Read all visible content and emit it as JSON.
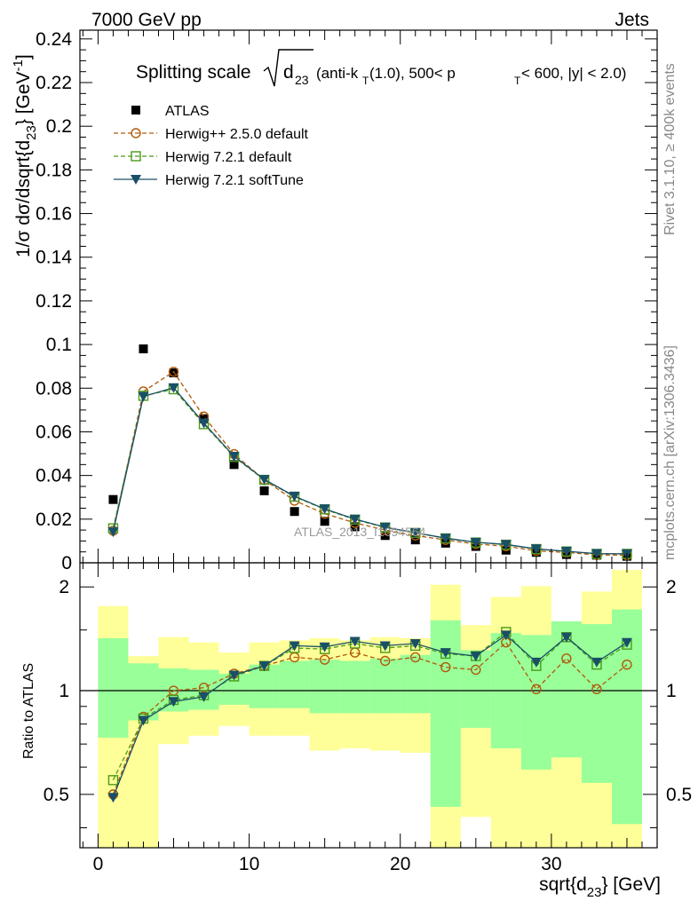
{
  "header": {
    "left": "7000 GeV pp",
    "right": "Jets"
  },
  "side_labels": {
    "rivet": "Rivet 3.1.10, ≥ 400k events",
    "mcplots": "mcplots.cern.ch [arXiv:1306.3436]"
  },
  "watermark": "ATLAS_2013_I1094564",
  "chart_data": [
    {
      "type": "line",
      "panel": "main",
      "title_parts": {
        "prefix": "Splitting scale",
        "radicand_main": "d",
        "radicand_sub": "23",
        "spec_1": "(anti-k",
        "spec_1_sub": "T",
        "spec_2": "(1.0), 500< p",
        "spec_2_sub": "T",
        "spec_3": " < 600, |y| < 2.0)"
      },
      "ylabel": "1/σ dσ/dsqrt{d23} [GeV-1]",
      "ylabel_parts": {
        "main": "1/σ dσ/dsqrt{d",
        "sub": "23",
        "mid": "} [GeV",
        "sup": "-1",
        "end": "]"
      },
      "xlabel": "sqrt{d23} [GeV]",
      "xlabel_parts": {
        "main": "sqrt{d",
        "sub": "23",
        "end": "} [GeV]"
      },
      "xlim": [
        -1.2,
        37
      ],
      "ylim": [
        0,
        0.244
      ],
      "x_ticks": [
        0,
        10,
        20,
        30
      ],
      "x_tick_labels": [
        "0",
        "10",
        "20",
        "30"
      ],
      "y_ticks": [
        0,
        0.02,
        0.04,
        0.06,
        0.08,
        0.1,
        0.12,
        0.14,
        0.16,
        0.18,
        0.2,
        0.22,
        0.24
      ],
      "y_tick_labels": [
        "0",
        "0.02",
        "0.04",
        "0.06",
        "0.08",
        "0.1",
        "0.12",
        "0.14",
        "0.16",
        "0.18",
        "0.2",
        "0.22",
        "0.24"
      ],
      "bin_edges": [
        0,
        2,
        4,
        6,
        8,
        10,
        12,
        14,
        16,
        18,
        20,
        22,
        24,
        26,
        28,
        30,
        32,
        34,
        36
      ],
      "x": [
        1,
        3,
        5,
        7,
        9,
        11,
        13,
        15,
        17,
        19,
        21,
        23,
        25,
        27,
        29,
        31,
        33,
        35
      ],
      "legend_position": "top-left",
      "series": [
        {
          "name": "ATLAS",
          "color": "#000000",
          "marker": "filled-square",
          "line": "none",
          "values": [
            0.029,
            0.098,
            0.087,
            0.066,
            0.045,
            0.033,
            0.0235,
            0.019,
            0.0165,
            0.0125,
            0.0105,
            0.009,
            0.0075,
            0.0058,
            0.0048,
            0.0038,
            0.0035,
            0.003
          ]
        },
        {
          "name": "Herwig++ 2.5.0 default",
          "color": "#b05a0a",
          "marker": "open-circle",
          "line": "dashed",
          "values": [
            0.0147,
            0.0785,
            0.0875,
            0.067,
            0.0498,
            0.038,
            0.0285,
            0.0225,
            0.0183,
            0.015,
            0.0125,
            0.0105,
            0.0086,
            0.0076,
            0.0055,
            0.0047,
            0.0036,
            0.0035
          ]
        },
        {
          "name": "Herwig 7.2.1 default",
          "color": "#4a9a1a",
          "marker": "open-square",
          "line": "dashed",
          "values": [
            0.0158,
            0.0765,
            0.0795,
            0.0635,
            0.0485,
            0.038,
            0.0303,
            0.0245,
            0.0198,
            0.0162,
            0.0137,
            0.0112,
            0.0093,
            0.0083,
            0.0063,
            0.0052,
            0.0041,
            0.0041
          ]
        },
        {
          "name": "Herwig 7.2.1 softTune",
          "color": "#1a4f68",
          "marker": "filled-triangle-down",
          "line": "solid",
          "values": [
            0.0142,
            0.0762,
            0.0802,
            0.064,
            0.0488,
            0.0382,
            0.0305,
            0.0247,
            0.02,
            0.0163,
            0.0138,
            0.0113,
            0.0094,
            0.0084,
            0.0064,
            0.0053,
            0.0042,
            0.0041
          ]
        }
      ]
    },
    {
      "type": "line",
      "panel": "ratio",
      "ylabel": "Ratio to ATLAS",
      "xlabel": "sqrt{d23} [GeV]",
      "xlim": [
        -1.2,
        37
      ],
      "ylim": [
        0.35,
        2.35
      ],
      "x_ticks": [
        0,
        10,
        20,
        30
      ],
      "x_tick_labels": [
        "0",
        "10",
        "20",
        "30"
      ],
      "y_ticks": [
        0.5,
        1,
        2
      ],
      "y_tick_labels": [
        "0.5",
        "1",
        "2"
      ],
      "bin_edges": [
        0,
        2,
        4,
        6,
        8,
        10,
        12,
        14,
        16,
        18,
        20,
        22,
        24,
        26,
        28,
        30,
        32,
        34,
        36
      ],
      "x": [
        1,
        3,
        5,
        7,
        9,
        11,
        13,
        15,
        17,
        19,
        21,
        23,
        25,
        27,
        29,
        31,
        33,
        35
      ],
      "bands": {
        "total_uncertainty": {
          "color": "#ffff99",
          "low": [
            0.35,
            0.35,
            0.7,
            0.74,
            0.79,
            0.74,
            0.74,
            0.67,
            0.68,
            0.67,
            0.66,
            0.35,
            0.43,
            0.35,
            0.35,
            0.35,
            0.35,
            0.35
          ],
          "high": [
            1.76,
            1.26,
            1.43,
            1.38,
            1.29,
            1.38,
            1.4,
            1.42,
            1.4,
            1.43,
            1.42,
            2.03,
            1.55,
            1.87,
            2.01,
            1.56,
            1.94,
            2.24
          ]
        },
        "stat_uncertainty": {
          "color": "#99ff99",
          "low": [
            0.73,
            0.82,
            0.87,
            0.88,
            0.91,
            0.89,
            0.89,
            0.86,
            0.86,
            0.86,
            0.86,
            0.46,
            0.78,
            0.68,
            0.59,
            0.64,
            0.54,
            0.41
          ],
          "high": [
            1.42,
            1.2,
            1.16,
            1.15,
            1.12,
            1.19,
            1.22,
            1.23,
            1.22,
            1.24,
            1.27,
            1.6,
            1.31,
            1.47,
            1.45,
            1.59,
            1.56,
            1.72
          ]
        }
      },
      "reference_line": 1,
      "series": [
        {
          "name": "Herwig++ 2.5.0 default",
          "color": "#b05a0a",
          "marker": "open-circle",
          "line": "dashed",
          "values": [
            0.5,
            0.84,
            1.0,
            1.02,
            1.12,
            1.18,
            1.25,
            1.23,
            1.29,
            1.22,
            1.25,
            1.17,
            1.15,
            1.38,
            1.01,
            1.24,
            1.01,
            1.19
          ]
        },
        {
          "name": "Herwig 7.2.1 default",
          "color": "#4a9a1a",
          "marker": "open-square",
          "line": "dashed",
          "values": [
            0.55,
            0.83,
            0.94,
            0.97,
            1.1,
            1.18,
            1.33,
            1.32,
            1.37,
            1.33,
            1.35,
            1.28,
            1.26,
            1.48,
            1.18,
            1.43,
            1.19,
            1.36
          ]
        },
        {
          "name": "Herwig 7.2.1 softTune",
          "color": "#1a4f68",
          "marker": "filled-triangle-down",
          "line": "solid",
          "values": [
            0.49,
            0.82,
            0.93,
            0.96,
            1.11,
            1.18,
            1.35,
            1.34,
            1.39,
            1.35,
            1.37,
            1.29,
            1.26,
            1.45,
            1.21,
            1.43,
            1.21,
            1.38
          ]
        }
      ]
    }
  ]
}
